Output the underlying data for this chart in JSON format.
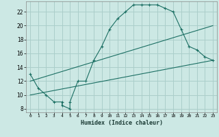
{
  "xlabel": "Humidex (Indice chaleur)",
  "background_color": "#cce8e4",
  "grid_color": "#aaceca",
  "line_color": "#1a6e62",
  "xlim": [
    -0.5,
    23.5
  ],
  "ylim": [
    7.5,
    23.5
  ],
  "yticks": [
    8,
    10,
    12,
    14,
    16,
    18,
    20,
    22
  ],
  "xticks": [
    0,
    1,
    2,
    3,
    4,
    5,
    6,
    7,
    8,
    9,
    10,
    11,
    12,
    13,
    14,
    15,
    16,
    17,
    18,
    19,
    20,
    21,
    22,
    23
  ],
  "curve1_x": [
    0,
    1,
    2,
    3,
    4,
    4,
    5,
    5,
    6,
    7,
    8,
    9,
    10,
    11,
    12,
    13,
    14,
    15,
    16,
    17,
    18,
    19,
    20,
    21,
    22,
    23
  ],
  "curve1_y": [
    13,
    11,
    10,
    9,
    9,
    8.5,
    8,
    9,
    12,
    12,
    15,
    17,
    19.5,
    21,
    22,
    23,
    23,
    23,
    23,
    22.5,
    22,
    19.5,
    17,
    16.5,
    15.5,
    15
  ],
  "line2_x": [
    0,
    23
  ],
  "line2_y": [
    12,
    20
  ],
  "line3_x": [
    0,
    23
  ],
  "line3_y": [
    10,
    15
  ],
  "marker": "+"
}
